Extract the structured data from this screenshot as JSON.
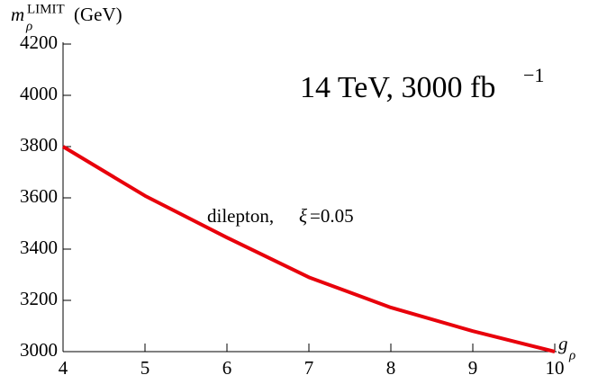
{
  "chart_data": {
    "type": "line",
    "ylabel": {
      "symbol": "m",
      "sub": "ρ",
      "sup": "LIMIT",
      "unit": "(GeV)"
    },
    "xlabel": {
      "symbol": "g",
      "sub": "ρ"
    },
    "annotation": {
      "text": "14 TeV,  3000 fb",
      "sup": "−1"
    },
    "series": [
      {
        "name": {
          "prefix": "dilepton, ",
          "symbol": "ξ",
          "suffix": "=0.05"
        },
        "color": "#e8000b",
        "x": [
          4,
          5,
          6,
          7,
          8,
          9,
          10
        ],
        "values": [
          3800,
          3608,
          3445,
          3290,
          3172,
          3080,
          3000
        ]
      }
    ],
    "xlim": [
      4,
      10
    ],
    "xticks": [
      4,
      5,
      6,
      7,
      8,
      9,
      10
    ],
    "ylim": [
      3000,
      4200
    ],
    "yticks": [
      3000,
      3200,
      3400,
      3600,
      3800,
      4000,
      4200
    ]
  }
}
